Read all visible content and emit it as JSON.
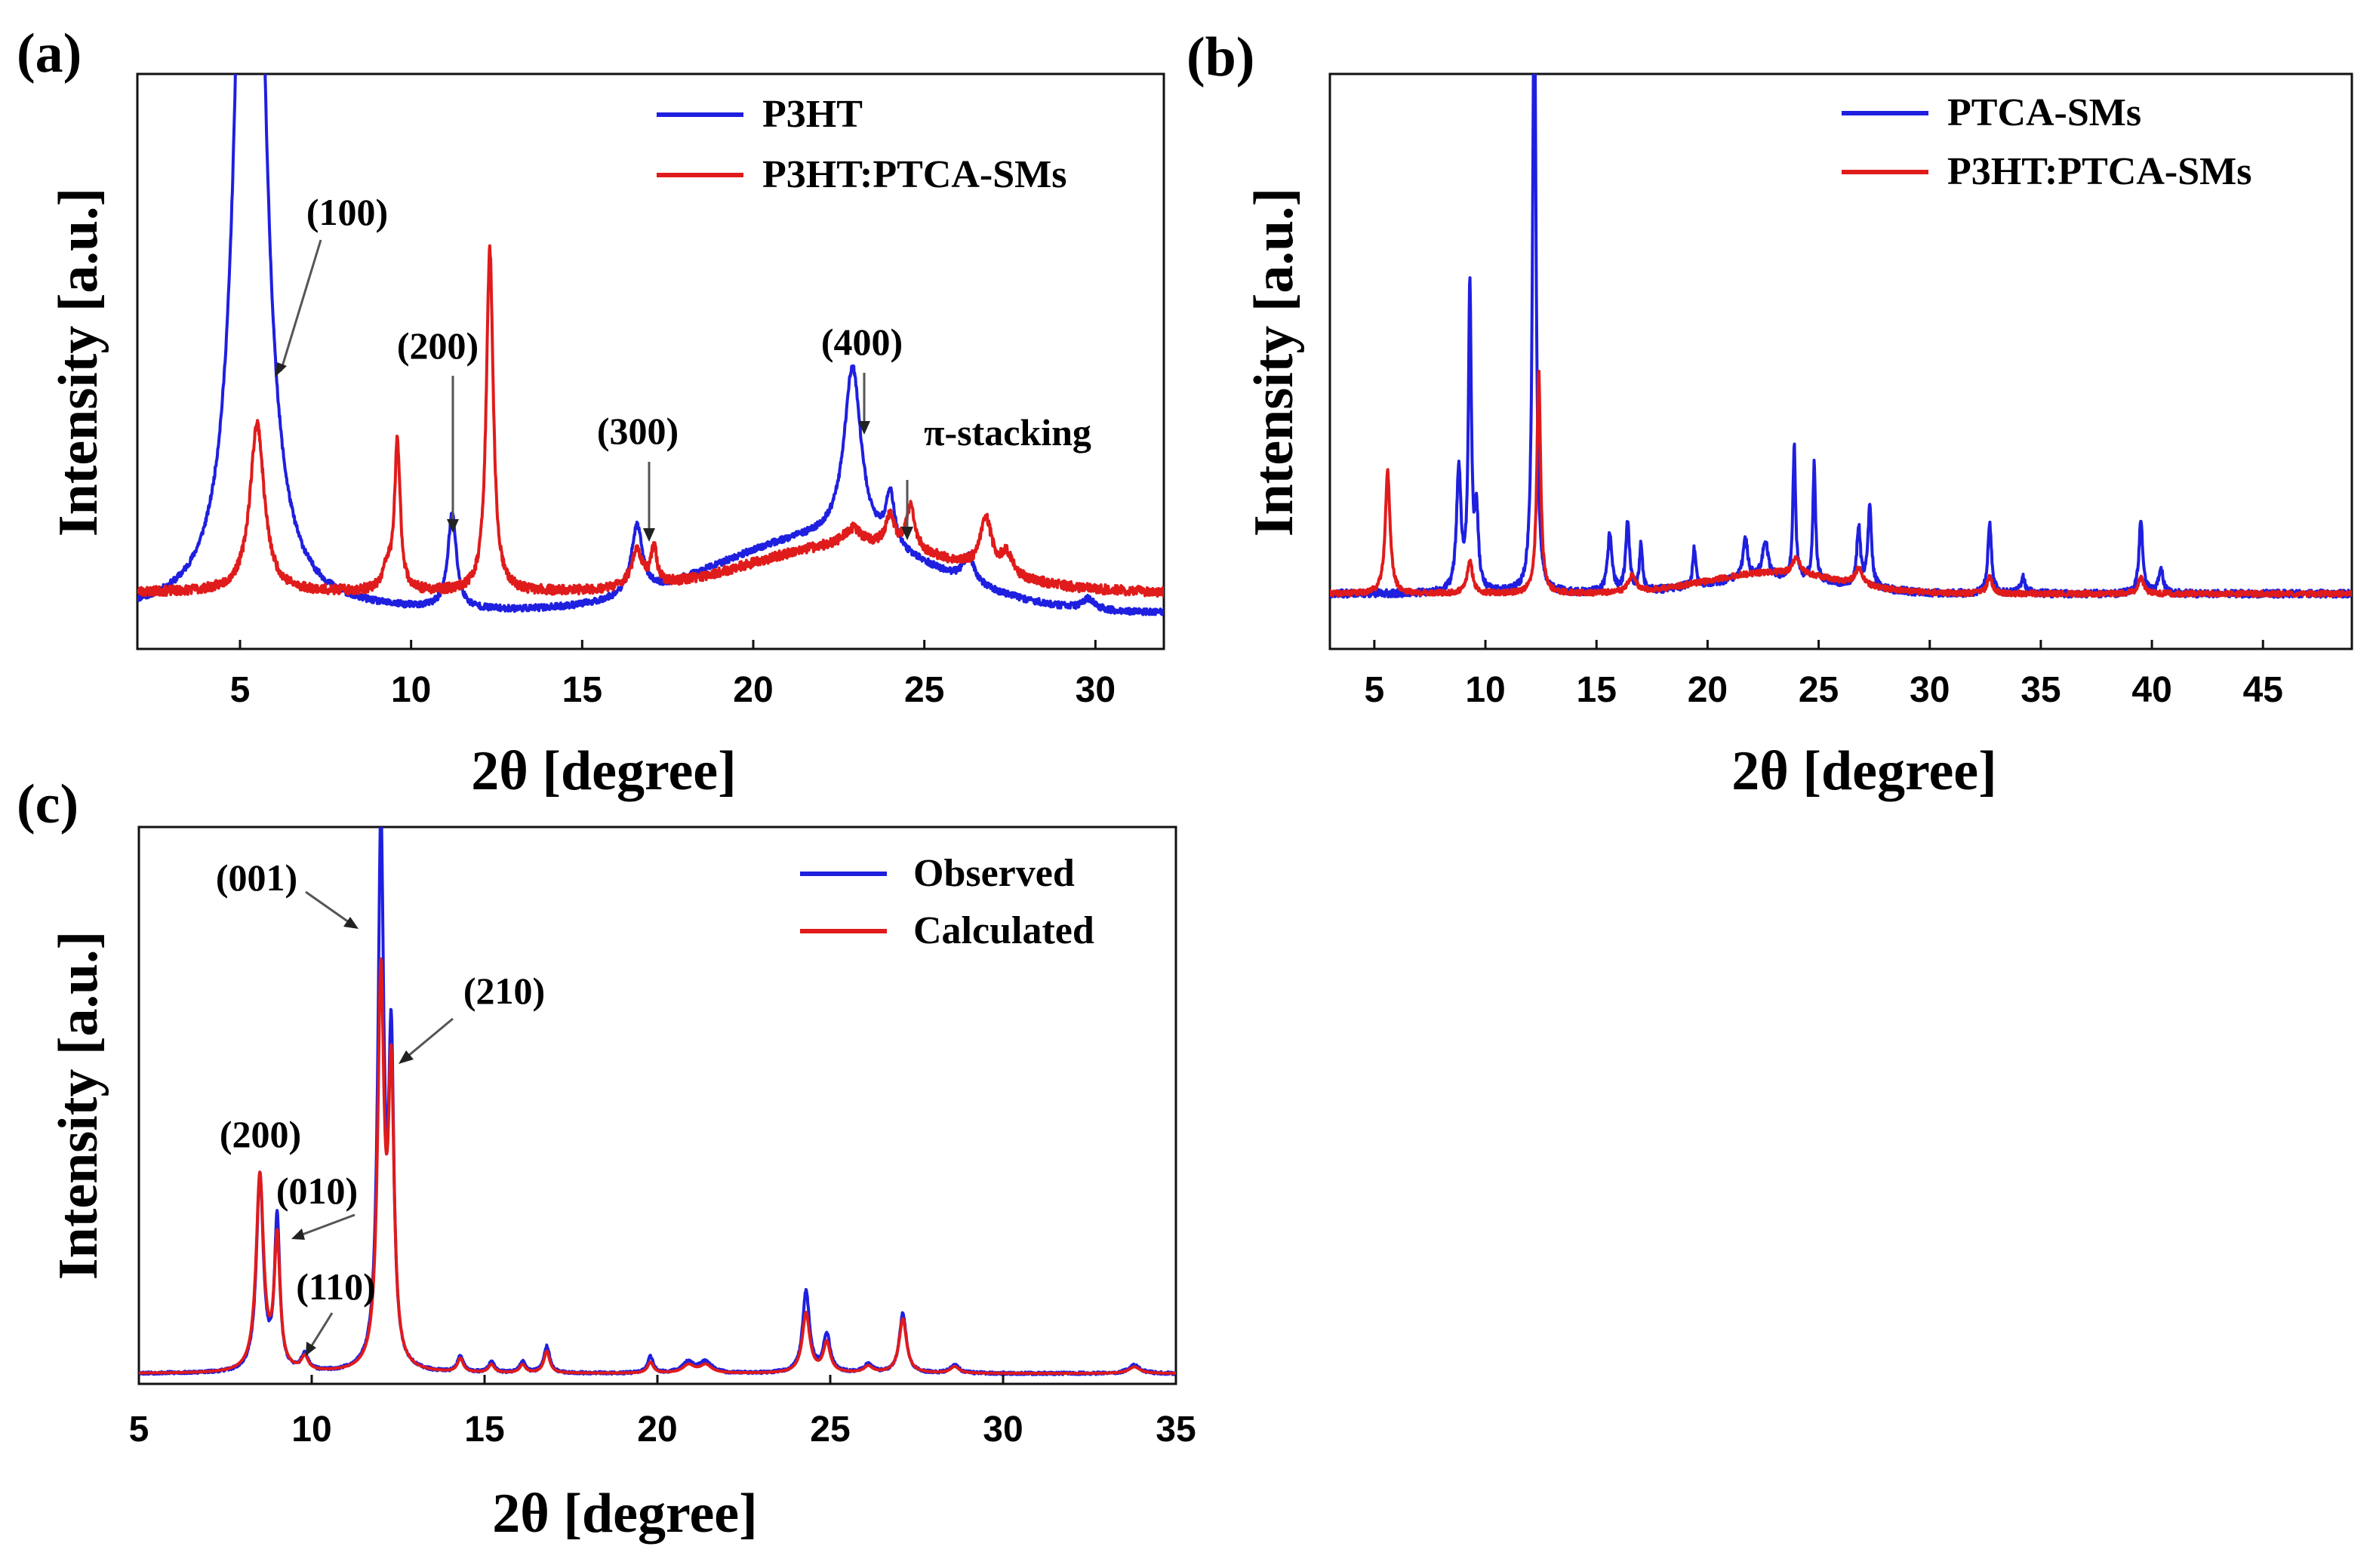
{
  "chart_data": [
    {
      "type": "line",
      "panel_label": "(a)",
      "xlabel": "2θ [degree]",
      "ylabel": "Intensity [a.u.]",
      "xlim": [
        2,
        32
      ],
      "ylim": [
        0,
        100
      ],
      "xticks": [
        5,
        10,
        15,
        20,
        25,
        30
      ],
      "legend_position": "top-right",
      "series": [
        {
          "name": "P3HT",
          "color": "#1f1fe0",
          "baseline": 1,
          "noise": 0.6,
          "seed": 11,
          "peaks": [
            [
              5.3,
              260,
              0.35
            ],
            [
              11.2,
              18,
              0.15
            ],
            [
              16.6,
              13,
              0.2
            ],
            [
              22.9,
              33,
              0.3
            ],
            [
              24.0,
              10,
              0.15
            ],
            [
              26.3,
              5,
              0.2
            ],
            [
              29.8,
              2,
              0.2
            ]
          ],
          "bumps": [
            [
              22,
              14,
              3.2
            ]
          ]
        },
        {
          "name": "P3HT:PTCA-SMs",
          "color": "#e01b1b",
          "baseline": 5,
          "noise": 0.9,
          "seed": 23,
          "peaks": [
            [
              5.5,
              32,
              0.25
            ],
            [
              9.6,
              28,
              0.1
            ],
            [
              9.3,
              4,
              0.15
            ],
            [
              12.3,
              65,
              0.12
            ],
            [
              16.6,
              7,
              0.2
            ],
            [
              17.1,
              7,
              0.1
            ],
            [
              22.9,
              3,
              0.3
            ],
            [
              24.0,
              6,
              0.15
            ],
            [
              24.6,
              8,
              0.15
            ],
            [
              26.8,
              10,
              0.2
            ],
            [
              27.4,
              4,
              0.2
            ]
          ],
          "bumps": [
            [
              23,
              9,
              3.0
            ]
          ]
        }
      ],
      "annotations": [
        {
          "text": "(100)",
          "x": 6.1,
          "y": 60
        },
        {
          "text": "(200)",
          "x": 11.2,
          "y": 55
        },
        {
          "text": "(300)",
          "x": 16.6,
          "y": 38
        },
        {
          "text": "(400)",
          "x": 22.9,
          "y": 55
        },
        {
          "text": "π-stacking",
          "x": 25.8,
          "y": 38
        }
      ]
    },
    {
      "type": "line",
      "panel_label": "(b)",
      "xlabel": "2θ [degree]",
      "ylabel": "Intensity [a.u.]",
      "xlim": [
        3,
        49
      ],
      "ylim": [
        0,
        100
      ],
      "xticks": [
        5,
        10,
        15,
        20,
        25,
        30,
        35,
        40,
        45
      ],
      "legend_position": "top-right",
      "series": [
        {
          "name": "PTCA-SMs",
          "color": "#1f1fe0",
          "baseline": 5,
          "noise": 0.7,
          "seed": 37,
          "peaks": [
            [
              8.8,
              23,
              0.12
            ],
            [
              9.3,
              57,
              0.08
            ],
            [
              9.6,
              14,
              0.1
            ],
            [
              12.2,
              120,
              0.09
            ],
            [
              15.6,
              11,
              0.12
            ],
            [
              16.4,
              13,
              0.1
            ],
            [
              17.0,
              9,
              0.08
            ],
            [
              19.4,
              7,
              0.08
            ],
            [
              21.7,
              8,
              0.12
            ],
            [
              22.6,
              7,
              0.15
            ],
            [
              23.9,
              25,
              0.07
            ],
            [
              24.8,
              22,
              0.07
            ],
            [
              26.8,
              11,
              0.1
            ],
            [
              27.3,
              15,
              0.1
            ],
            [
              32.7,
              13,
              0.1
            ],
            [
              34.2,
              3,
              0.12
            ],
            [
              39.5,
              14,
              0.1
            ],
            [
              40.4,
              5,
              0.12
            ]
          ],
          "bumps": [
            [
              23,
              3,
              3
            ]
          ]
        },
        {
          "name": "P3HT:PTCA-SMs",
          "color": "#e01b1b",
          "baseline": 5,
          "noise": 0.5,
          "seed": 41,
          "peaks": [
            [
              5.6,
              23,
              0.13
            ],
            [
              9.3,
              6,
              0.15
            ],
            [
              12.4,
              42,
              0.1
            ],
            [
              16.6,
              3,
              0.2
            ],
            [
              24.0,
              3,
              0.2
            ],
            [
              26.8,
              3,
              0.2
            ],
            [
              32.7,
              3,
              0.15
            ],
            [
              39.5,
              3,
              0.15
            ]
          ],
          "bumps": [
            [
              23,
              4,
              3
            ]
          ]
        }
      ]
    },
    {
      "type": "line",
      "panel_label": "(c)",
      "xlabel": "2θ [degree]",
      "ylabel": "Intensity [a.u.]",
      "xlim": [
        5,
        35
      ],
      "ylim": [
        0,
        100
      ],
      "xticks": [
        5,
        10,
        15,
        20,
        25,
        30,
        35
      ],
      "legend_position": "top-right",
      "series": [
        {
          "name": "Observed",
          "color": "#1f1fe0",
          "baseline": 0.8,
          "noise": 0.25,
          "seed": 53,
          "peaks": [
            [
              8.5,
              36,
              0.12
            ],
            [
              9.0,
              28,
              0.09
            ],
            [
              9.8,
              3,
              0.12
            ],
            [
              12.0,
              100,
              0.1
            ],
            [
              12.3,
              57,
              0.09
            ],
            [
              14.3,
              3,
              0.1
            ],
            [
              15.2,
              2,
              0.1
            ],
            [
              16.1,
              2,
              0.1
            ],
            [
              16.8,
              5,
              0.1
            ],
            [
              19.8,
              3,
              0.1
            ],
            [
              20.9,
              2,
              0.2
            ],
            [
              21.4,
              2,
              0.2
            ],
            [
              24.3,
              15,
              0.12
            ],
            [
              24.9,
              7,
              0.12
            ],
            [
              26.1,
              1.5,
              0.15
            ],
            [
              27.1,
              11,
              0.12
            ],
            [
              28.6,
              1.5,
              0.15
            ],
            [
              33.8,
              1.5,
              0.2
            ]
          ],
          "bumps": []
        },
        {
          "name": "Calculated",
          "color": "#e01b1b",
          "baseline": 0.8,
          "noise": 0,
          "seed": 0,
          "peaks": [
            [
              8.5,
              36,
              0.13
            ],
            [
              9.0,
              24,
              0.1
            ],
            [
              9.8,
              2.5,
              0.12
            ],
            [
              12.0,
              71,
              0.11
            ],
            [
              12.3,
              52,
              0.1
            ],
            [
              14.3,
              2.5,
              0.1
            ],
            [
              15.2,
              1.5,
              0.1
            ],
            [
              16.1,
              1.5,
              0.1
            ],
            [
              16.8,
              4,
              0.1
            ],
            [
              19.8,
              2,
              0.1
            ],
            [
              20.9,
              1.5,
              0.2
            ],
            [
              21.4,
              1.5,
              0.2
            ],
            [
              24.3,
              11,
              0.13
            ],
            [
              24.9,
              5.5,
              0.12
            ],
            [
              26.1,
              1.2,
              0.15
            ],
            [
              27.1,
              10,
              0.13
            ],
            [
              28.6,
              1.2,
              0.15
            ],
            [
              33.8,
              1.2,
              0.2
            ]
          ],
          "bumps": []
        }
      ],
      "annotations": [
        {
          "text": "(001)",
          "x": 11.8,
          "y": 81
        },
        {
          "text": "(210)",
          "x": 12.6,
          "y": 59
        },
        {
          "text": "(200)",
          "x": 8.4,
          "y": 42
        },
        {
          "text": "(010)",
          "x": 9.3,
          "y": 27
        },
        {
          "text": "(110)",
          "x": 9.9,
          "y": 8
        }
      ]
    }
  ]
}
